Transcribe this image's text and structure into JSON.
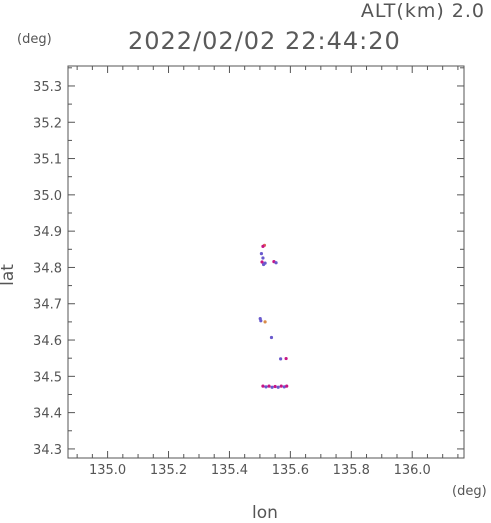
{
  "header": {
    "altitude_label": "ALT(km) 2.0",
    "timestamp": "2022/02/02 22:44:20"
  },
  "axes": {
    "y_unit": "(deg)",
    "x_unit": "(deg)",
    "x_title": "lon",
    "y_title": "lat"
  },
  "colors": {
    "axis": "#555555",
    "point_blue": "#6a5acd",
    "point_magenta": "#c71585",
    "point_red": "#e0605a",
    "point_orange": "#d98c4a"
  },
  "chart_data": {
    "type": "scatter",
    "title": "",
    "xlabel": "lon",
    "ylabel": "lat",
    "xlim": [
      134.87,
      136.17
    ],
    "ylim": [
      34.275,
      35.355
    ],
    "x_ticks": [
      135.0,
      135.2,
      135.4,
      135.6,
      135.8,
      136.0
    ],
    "x_tick_labels": [
      "135.0",
      "135.2",
      "135.4",
      "135.6",
      "135.8",
      "136.0"
    ],
    "y_ticks": [
      34.3,
      34.4,
      34.5,
      34.6,
      34.7,
      34.8,
      34.9,
      35.0,
      35.1,
      35.2,
      35.3
    ],
    "y_tick_labels": [
      "34.3",
      "34.4",
      "34.5",
      "34.6",
      "34.7",
      "34.8",
      "34.9",
      "35.0",
      "35.1",
      "35.2",
      "35.3"
    ],
    "grid": false,
    "points": [
      {
        "x": 135.515,
        "y": 34.861,
        "color": "point_red"
      },
      {
        "x": 135.51,
        "y": 34.858,
        "color": "point_magenta"
      },
      {
        "x": 135.505,
        "y": 34.838,
        "color": "point_blue"
      },
      {
        "x": 135.51,
        "y": 34.826,
        "color": "point_blue"
      },
      {
        "x": 135.507,
        "y": 34.815,
        "color": "point_magenta"
      },
      {
        "x": 135.512,
        "y": 34.808,
        "color": "point_blue"
      },
      {
        "x": 135.517,
        "y": 34.812,
        "color": "point_blue"
      },
      {
        "x": 135.546,
        "y": 34.816,
        "color": "point_magenta"
      },
      {
        "x": 135.553,
        "y": 34.813,
        "color": "point_blue"
      },
      {
        "x": 135.501,
        "y": 34.659,
        "color": "point_blue"
      },
      {
        "x": 135.503,
        "y": 34.653,
        "color": "point_blue"
      },
      {
        "x": 135.517,
        "y": 34.65,
        "color": "point_orange"
      },
      {
        "x": 135.538,
        "y": 34.607,
        "color": "point_blue"
      },
      {
        "x": 135.568,
        "y": 34.548,
        "color": "point_blue"
      },
      {
        "x": 135.586,
        "y": 34.549,
        "color": "point_magenta"
      },
      {
        "x": 135.51,
        "y": 34.473,
        "color": "point_magenta"
      },
      {
        "x": 135.52,
        "y": 34.471,
        "color": "point_blue"
      },
      {
        "x": 135.53,
        "y": 34.473,
        "color": "point_magenta"
      },
      {
        "x": 135.54,
        "y": 34.47,
        "color": "point_blue"
      },
      {
        "x": 135.55,
        "y": 34.472,
        "color": "point_magenta"
      },
      {
        "x": 135.56,
        "y": 34.47,
        "color": "point_blue"
      },
      {
        "x": 135.57,
        "y": 34.473,
        "color": "point_magenta"
      },
      {
        "x": 135.58,
        "y": 34.471,
        "color": "point_blue"
      },
      {
        "x": 135.588,
        "y": 34.473,
        "color": "point_magenta"
      }
    ]
  }
}
